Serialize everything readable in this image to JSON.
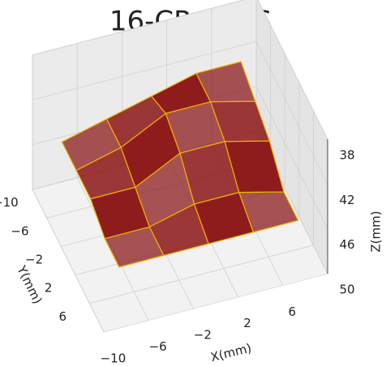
{
  "chart_data": {
    "type": "surface3d",
    "title": "16-CP OTPS",
    "xlabel": "X(mm)",
    "ylabel": "Y(mm)",
    "zlabel": "Z(mm)",
    "x": [
      -8,
      -4,
      0,
      4,
      8
    ],
    "y": [
      -8,
      -4,
      0,
      4,
      8
    ],
    "z": [
      [
        45,
        44,
        43,
        42,
        42
      ],
      [
        45,
        44,
        42,
        42,
        43
      ],
      [
        45,
        45,
        43,
        43,
        44
      ],
      [
        46,
        46,
        45,
        45,
        46
      ],
      [
        46,
        46,
        46,
        46,
        46
      ]
    ],
    "color": "#8e1c1c",
    "mesh_color": "#f0b400",
    "xlim": [
      -10,
      10
    ],
    "ylim": [
      -10,
      10
    ],
    "zlim": [
      38,
      50
    ],
    "z_inverted": true,
    "xticks": [
      {
        "value": -10,
        "label": "−10"
      },
      {
        "value": -6,
        "label": "−6"
      },
      {
        "value": -2,
        "label": "−2"
      },
      2,
      6
    ],
    "yticks": [
      {
        "value": -10,
        "label": "−10"
      },
      {
        "value": -6,
        "label": "−6"
      },
      {
        "value": -2,
        "label": "−2"
      },
      2,
      6
    ],
    "zticks": [
      38,
      42,
      46,
      50
    ],
    "grid": true
  }
}
